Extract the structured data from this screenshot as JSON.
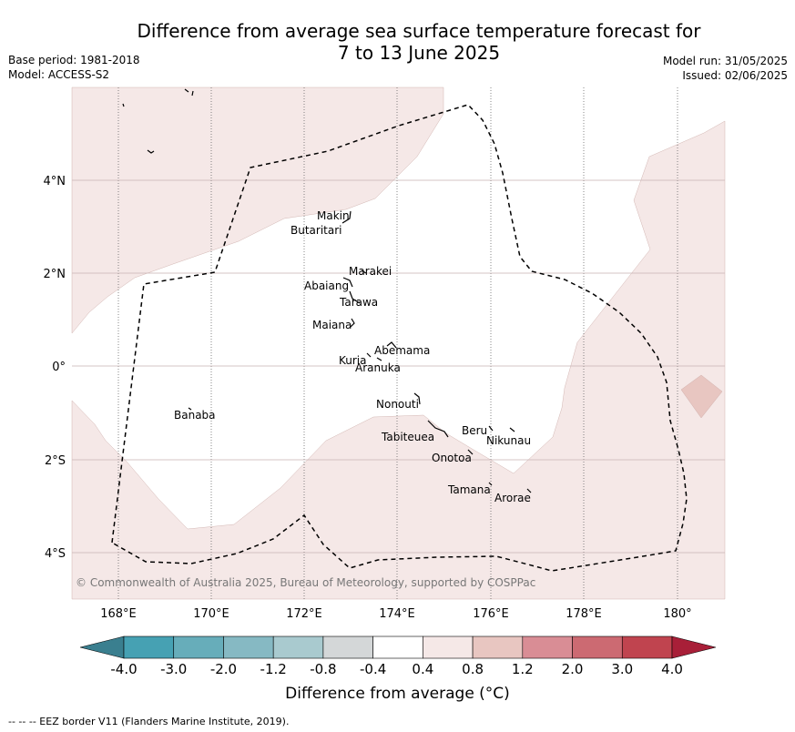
{
  "header": {
    "title_line1": "Difference from average sea surface temperature forecast for",
    "title_line2": "7 to 13 June 2025",
    "base_period": "Base period: 1981-2018",
    "model": "Model: ACCESS-S2",
    "model_run": "Model run: 31/05/2025",
    "issued": "Issued: 02/06/2025"
  },
  "map": {
    "lon_ticks": [
      "168°E",
      "170°E",
      "172°E",
      "174°E",
      "176°E",
      "178°E",
      "180°"
    ],
    "lat_ticks": [
      "4°N",
      "2°N",
      "0°",
      "2°S",
      "4°S"
    ],
    "islands": [
      {
        "name": "Makin"
      },
      {
        "name": "Butaritari"
      },
      {
        "name": "Marakei"
      },
      {
        "name": "Abaiang"
      },
      {
        "name": "Tarawa"
      },
      {
        "name": "Maiana"
      },
      {
        "name": "Abemama"
      },
      {
        "name": "Kuria"
      },
      {
        "name": "Aranuka"
      },
      {
        "name": "Banaba"
      },
      {
        "name": "Nonouti"
      },
      {
        "name": "Beru"
      },
      {
        "name": "Nikunau"
      },
      {
        "name": "Tabiteuea"
      },
      {
        "name": "Onotoa"
      },
      {
        "name": "Tamana"
      },
      {
        "name": "Arorae"
      }
    ],
    "copyright": "© Commonwealth of Australia 2025, Bureau of Meteorology, supported by COSPPac",
    "colors": {
      "anomaly_0.4_0.8": "#f5e8e7",
      "anomaly_0.8_1.2": "#e8c6c1",
      "eez_border": "#000000"
    }
  },
  "colorbar": {
    "labels": [
      "-4.0",
      "-3.0",
      "-2.0",
      "-1.2",
      "-0.8",
      "-0.4",
      "0.4",
      "0.8",
      "1.2",
      "2.0",
      "3.0",
      "4.0"
    ],
    "colors": [
      "#3a7f8f",
      "#46a1b3",
      "#67adba",
      "#86b9c3",
      "#a9cacf",
      "#d4d7d8",
      "#ffffff",
      "#f5e8e7",
      "#e8c6c1",
      "#d98d95",
      "#cc6a72",
      "#c0444f",
      "#a81f38"
    ],
    "title": "Difference from average (°C)"
  },
  "footer": {
    "legend_text": "-- -- -- EEZ border V11 (Flanders Marine Institute, 2019)."
  }
}
